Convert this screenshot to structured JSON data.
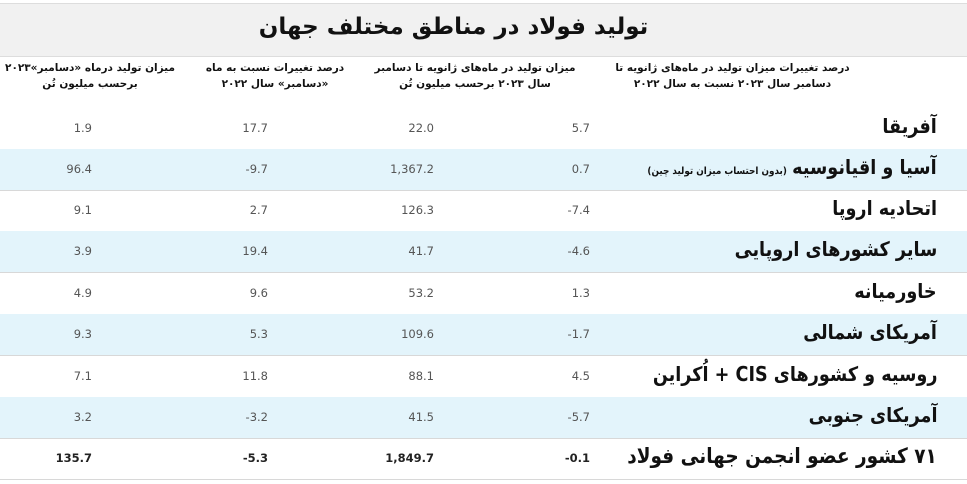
{
  "title": "تولید فولاد در مناطق مختلف جهان",
  "columns": [
    {
      "line1": "میزان تولید درماه «دسامبر»۲۰۲۳",
      "line2": "برحسب میلیون تُن"
    },
    {
      "line1": "درصد تغییرات نسبت به ماه",
      "line2": "«دسامبر» سال ۲۰۲۲"
    },
    {
      "line1": "میزان تولید در ماه‌های ژانویه تا دسامبر",
      "line2": "سال ۲۰۲۳ برحسب میلیون تُن"
    },
    {
      "line1": "درصد تغییرات میزان تولید در ماه‌های ژانویه تا",
      "line2": "دسامبر سال ۲۰۲۳ نسبت به سال ۲۰۲۲"
    }
  ],
  "rows": [
    {
      "region": "آفریقا",
      "note": "",
      "dec_production": "1.9",
      "dec_change": "17.7",
      "ytd_production": "22.0",
      "ytd_change": "5.7"
    },
    {
      "region": "آسیا و اقیانوسیه",
      "note": "(بدون احتساب میزان تولید چین)",
      "dec_production": "96.4",
      "dec_change": "-9.7",
      "ytd_production": "1,367.2",
      "ytd_change": "0.7"
    },
    {
      "region": "اتحادیه اروپا",
      "note": "",
      "dec_production": "9.1",
      "dec_change": "2.7",
      "ytd_production": "126.3",
      "ytd_change": "-7.4"
    },
    {
      "region": "سایر کشورهای اروپایی",
      "note": "",
      "dec_production": "3.9",
      "dec_change": "19.4",
      "ytd_production": "41.7",
      "ytd_change": "-4.6"
    },
    {
      "region": "خاورمیانه",
      "note": "",
      "dec_production": "4.9",
      "dec_change": "9.6",
      "ytd_production": "53.2",
      "ytd_change": "1.3"
    },
    {
      "region": "آمریکای شمالی",
      "note": "",
      "dec_production": "9.3",
      "dec_change": "5.3",
      "ytd_production": "109.6",
      "ytd_change": "-1.7"
    },
    {
      "region": "روسیه و کشورهای CIS + اُکراین",
      "note": "",
      "dec_production": "7.1",
      "dec_change": "11.8",
      "ytd_production": "88.1",
      "ytd_change": "4.5"
    },
    {
      "region": "آمریکای جنوبی",
      "note": "",
      "dec_production": "3.2",
      "dec_change": "-3.2",
      "ytd_production": "41.5",
      "ytd_change": "-5.7"
    },
    {
      "region": "۷۱ کشور عضو انجمن جهانی فولاد",
      "note": "",
      "dec_production": "135.7",
      "dec_change": "-5.3",
      "ytd_production": "1,849.7",
      "ytd_change": "-0.1"
    }
  ]
}
